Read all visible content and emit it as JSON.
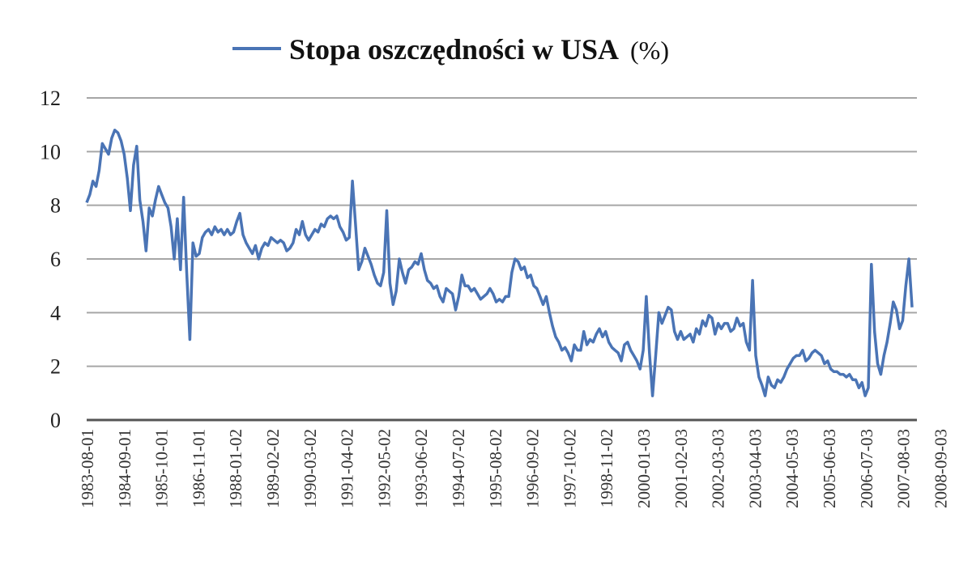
{
  "chart_data": {
    "type": "line",
    "title": "",
    "xlabel": "",
    "ylabel": "",
    "ylim": [
      0,
      12
    ],
    "yticks": [
      "0",
      "2",
      "4",
      "6",
      "8",
      "10",
      "12"
    ],
    "grid": true,
    "legend_position": "top",
    "series": [
      {
        "name": "Stopa oszczędności w USA",
        "unit": "(%)",
        "color": "#4a74b5",
        "x_start": "1983-08",
        "x_end": "2009-06",
        "values": [
          8.1,
          8.4,
          8.9,
          8.7,
          9.3,
          10.3,
          10.1,
          9.9,
          10.5,
          10.8,
          10.7,
          10.4,
          9.9,
          9.0,
          7.8,
          9.5,
          10.2,
          8.2,
          7.4,
          6.3,
          7.9,
          7.6,
          8.2,
          8.7,
          8.4,
          8.1,
          7.9,
          7.2,
          6.0,
          7.5,
          5.6,
          8.3,
          5.5,
          3.0,
          6.6,
          6.1,
          6.2,
          6.8,
          7.0,
          7.1,
          6.9,
          7.2,
          7.0,
          7.1,
          6.9,
          7.1,
          6.9,
          7.0,
          7.4,
          7.7,
          6.9,
          6.6,
          6.4,
          6.2,
          6.5,
          6.0,
          6.4,
          6.6,
          6.5,
          6.8,
          6.7,
          6.6,
          6.7,
          6.6,
          6.3,
          6.4,
          6.6,
          7.1,
          6.9,
          7.4,
          6.9,
          6.7,
          6.9,
          7.1,
          7.0,
          7.3,
          7.2,
          7.5,
          7.6,
          7.5,
          7.6,
          7.2,
          7.0,
          6.7,
          6.8,
          8.9,
          7.3,
          5.6,
          5.9,
          6.4,
          6.1,
          5.8,
          5.4,
          5.1,
          5.0,
          5.5,
          7.8,
          5.1,
          4.3,
          4.8,
          6.0,
          5.5,
          5.1,
          5.6,
          5.7,
          5.9,
          5.8,
          6.2,
          5.6,
          5.2,
          5.1,
          4.9,
          5.0,
          4.6,
          4.4,
          4.9,
          4.8,
          4.7,
          4.1,
          4.6,
          5.4,
          5.0,
          5.0,
          4.8,
          4.9,
          4.7,
          4.5,
          4.6,
          4.7,
          4.9,
          4.7,
          4.4,
          4.5,
          4.4,
          4.6,
          4.6,
          5.5,
          6.0,
          5.9,
          5.6,
          5.7,
          5.3,
          5.4,
          5.0,
          4.9,
          4.6,
          4.3,
          4.6,
          4.0,
          3.5,
          3.1,
          2.9,
          2.6,
          2.7,
          2.5,
          2.2,
          2.8,
          2.6,
          2.6,
          3.3,
          2.8,
          3.0,
          2.9,
          3.2,
          3.4,
          3.1,
          3.3,
          2.9,
          2.7,
          2.6,
          2.5,
          2.2,
          2.8,
          2.9,
          2.6,
          2.4,
          2.2,
          1.9,
          2.6,
          4.6,
          2.5,
          0.9,
          2.4,
          4.0,
          3.6,
          3.9,
          4.2,
          4.1,
          3.3,
          3.0,
          3.3,
          3.0,
          3.1,
          3.2,
          2.9,
          3.4,
          3.2,
          3.7,
          3.5,
          3.9,
          3.8,
          3.2,
          3.6,
          3.4,
          3.6,
          3.6,
          3.3,
          3.4,
          3.8,
          3.5,
          3.6,
          2.9,
          2.6,
          5.2,
          2.4,
          1.6,
          1.3,
          0.9,
          1.6,
          1.3,
          1.2,
          1.5,
          1.4,
          1.6,
          1.9,
          2.1,
          2.3,
          2.4,
          2.4,
          2.6,
          2.2,
          2.3,
          2.5,
          2.6,
          2.5,
          2.4,
          2.1,
          2.2,
          1.9,
          1.8,
          1.8,
          1.7,
          1.7,
          1.6,
          1.7,
          1.5,
          1.5,
          1.2,
          1.4,
          0.9,
          1.2,
          5.8,
          3.3,
          2.1,
          1.7,
          2.4,
          2.9,
          3.6,
          4.4,
          4.1,
          3.4,
          3.7,
          5.0,
          6.0,
          4.2
        ]
      }
    ],
    "x_tick_labels": [
      "1983-08-01",
      "1984-09-01",
      "1985-10-01",
      "1986-11-01",
      "1988-01-02",
      "1989-02-02",
      "1990-03-02",
      "1991-04-02",
      "1992-05-02",
      "1993-06-02",
      "1994-07-02",
      "1995-08-02",
      "1996-09-02",
      "1997-10-02",
      "1998-11-02",
      "2000-01-03",
      "2001-02-03",
      "2002-03-03",
      "2003-04-03",
      "2004-05-03",
      "2005-06-03",
      "2006-07-03",
      "2007-08-03",
      "2008-09-03"
    ]
  }
}
